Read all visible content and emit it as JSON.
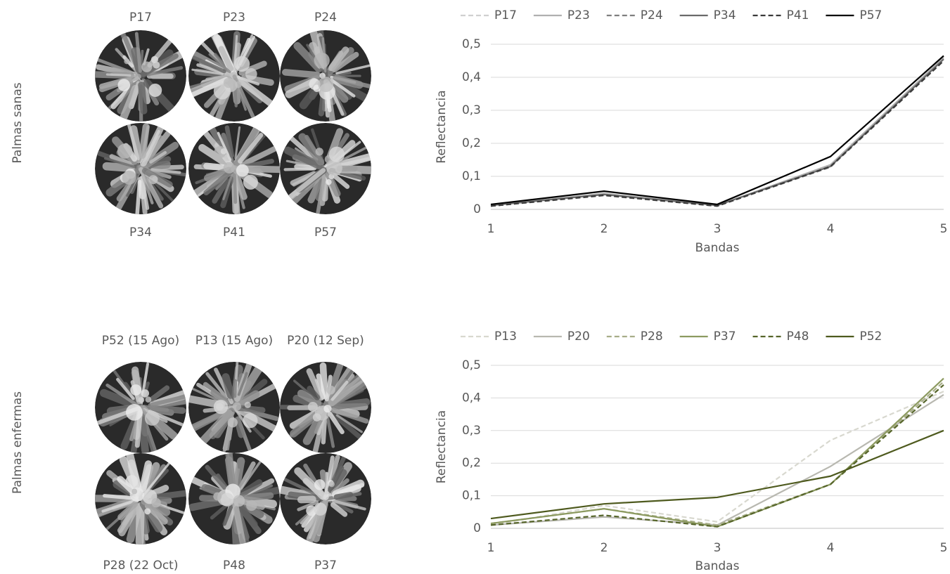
{
  "panels": [
    {
      "row_label": "Palmas sanas",
      "top_labels": [
        "P17",
        "P23",
        "P24"
      ],
      "bottom_labels": [
        "P34",
        "P41",
        "P57"
      ]
    },
    {
      "row_label": "Palmas enfermas",
      "top_labels": [
        "P52 (15 Ago)",
        "P13 (15 Ago)",
        "P20 (12 Sep)"
      ],
      "bottom_labels": [
        "P28 (22 Oct)",
        "P48",
        "P37"
      ]
    }
  ],
  "chart_data": [
    {
      "type": "line",
      "x_label": "Bandas",
      "y_label": "Reflectancia",
      "x": [
        1,
        2,
        3,
        4,
        5
      ],
      "xlim": [
        1,
        5
      ],
      "xticks": [
        1,
        2,
        3,
        4,
        5
      ],
      "ylim": [
        0,
        0.5
      ],
      "yticks": [
        0,
        {
          "value": 0.1,
          "label": "0,1"
        },
        {
          "value": 0.2,
          "label": "0,2"
        },
        {
          "value": 0.3,
          "label": "0,3"
        },
        {
          "value": 0.4,
          "label": "0,4"
        },
        {
          "value": 0.5,
          "label": "0,5"
        }
      ],
      "grid": true,
      "legend": "top",
      "series": [
        {
          "name": "P17",
          "color": "#d0d0d0",
          "dashed": true,
          "values": [
            0.012,
            0.045,
            0.012,
            0.13,
            0.455
          ]
        },
        {
          "name": "P23",
          "color": "#b0b0b0",
          "dashed": false,
          "values": [
            0.012,
            0.048,
            0.012,
            0.135,
            0.46
          ]
        },
        {
          "name": "P24",
          "color": "#7f7f7f",
          "dashed": true,
          "values": [
            0.01,
            0.042,
            0.01,
            0.128,
            0.45
          ]
        },
        {
          "name": "P34",
          "color": "#6a6a6a",
          "dashed": false,
          "values": [
            0.012,
            0.045,
            0.012,
            0.13,
            0.455
          ]
        },
        {
          "name": "P41",
          "color": "#3a3a3a",
          "dashed": true,
          "values": [
            0.01,
            0.043,
            0.01,
            0.13,
            0.45
          ]
        },
        {
          "name": "P57",
          "color": "#000000",
          "dashed": false,
          "values": [
            0.015,
            0.055,
            0.015,
            0.16,
            0.465
          ]
        }
      ]
    },
    {
      "type": "line",
      "x_label": "Bandas",
      "y_label": "Reflectancia",
      "x": [
        1,
        2,
        3,
        4,
        5
      ],
      "xlim": [
        1,
        5
      ],
      "xticks": [
        1,
        2,
        3,
        4,
        5
      ],
      "ylim": [
        0,
        0.5
      ],
      "yticks": [
        0,
        {
          "value": 0.1,
          "label": "0,1"
        },
        {
          "value": 0.2,
          "label": "0,2"
        },
        {
          "value": 0.3,
          "label": "0,3"
        },
        {
          "value": 0.4,
          "label": "0,4"
        },
        {
          "value": 0.5,
          "label": "0,5"
        }
      ],
      "grid": true,
      "legend": "top",
      "series": [
        {
          "name": "P13",
          "color": "#d8d8cf",
          "dashed": true,
          "values": [
            0.01,
            0.07,
            0.02,
            0.27,
            0.42
          ]
        },
        {
          "name": "P20",
          "color": "#b8b8b0",
          "dashed": false,
          "values": [
            0.01,
            0.035,
            0.01,
            0.19,
            0.41
          ]
        },
        {
          "name": "P28",
          "color": "#a7ad88",
          "dashed": true,
          "values": [
            0.015,
            0.06,
            0.01,
            0.135,
            0.45
          ]
        },
        {
          "name": "P37",
          "color": "#8c9a60",
          "dashed": false,
          "values": [
            0.015,
            0.06,
            0.005,
            0.135,
            0.46
          ]
        },
        {
          "name": "P48",
          "color": "#56652a",
          "dashed": true,
          "values": [
            0.01,
            0.04,
            0.005,
            0.135,
            0.44
          ]
        },
        {
          "name": "P52",
          "color": "#4e5a1e",
          "dashed": false,
          "values": [
            0.03,
            0.075,
            0.095,
            0.16,
            0.3
          ]
        }
      ]
    }
  ]
}
